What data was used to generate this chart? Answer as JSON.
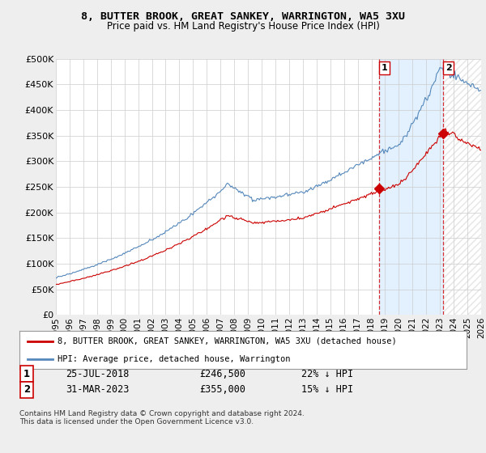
{
  "title": "8, BUTTER BROOK, GREAT SANKEY, WARRINGTON, WA5 3XU",
  "subtitle": "Price paid vs. HM Land Registry's House Price Index (HPI)",
  "ylabel_ticks": [
    "£0",
    "£50K",
    "£100K",
    "£150K",
    "£200K",
    "£250K",
    "£300K",
    "£350K",
    "£400K",
    "£450K",
    "£500K"
  ],
  "ytick_vals": [
    0,
    50000,
    100000,
    150000,
    200000,
    250000,
    300000,
    350000,
    400000,
    450000,
    500000
  ],
  "ylim": [
    0,
    500000
  ],
  "hpi_color": "#5588bb",
  "price_color": "#cc0000",
  "marker1_x": 2018.57,
  "marker1_y": 246500,
  "marker1_label": "25-JUL-2018",
  "marker1_price": "£246,500",
  "marker1_pct": "22% ↓ HPI",
  "marker2_x": 2023.25,
  "marker2_y": 355000,
  "marker2_label": "31-MAR-2023",
  "marker2_price": "£355,000",
  "marker2_pct": "15% ↓ HPI",
  "vline1_x": 2018.57,
  "vline2_x": 2023.25,
  "legend_house": "8, BUTTER BROOK, GREAT SANKEY, WARRINGTON, WA5 3XU (detached house)",
  "legend_hpi": "HPI: Average price, detached house, Warrington",
  "footnote": "Contains HM Land Registry data © Crown copyright and database right 2024.\nThis data is licensed under the Open Government Licence v3.0.",
  "background_color": "#eeeeee",
  "plot_bg": "#ffffff",
  "grid_color": "#cccccc",
  "shade_color": "#ddeeff",
  "hatch_color": "#cccccc",
  "xmin": 1995,
  "xmax": 2026,
  "xtick_years": [
    1995,
    1996,
    1997,
    1998,
    1999,
    2000,
    2001,
    2002,
    2003,
    2004,
    2005,
    2006,
    2007,
    2008,
    2009,
    2010,
    2011,
    2012,
    2013,
    2014,
    2015,
    2016,
    2017,
    2018,
    2019,
    2020,
    2021,
    2022,
    2023,
    2024,
    2025,
    2026
  ]
}
